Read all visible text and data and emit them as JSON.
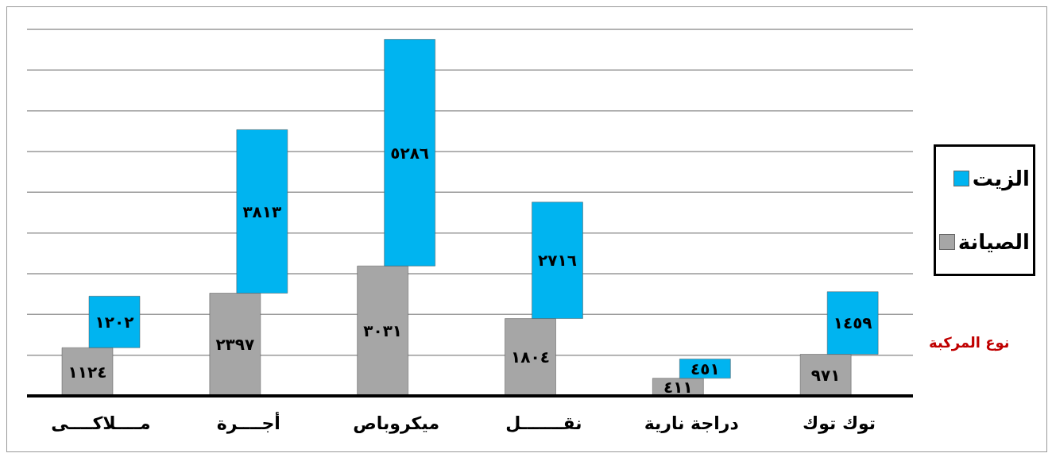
{
  "chart_data": {
    "type": "bar",
    "stacked": true,
    "xlabel": "نوع المركبة",
    "categories": [
      "مــــلاكــــى",
      "أجــــرة",
      "ميكروباص",
      "نقـــــــل",
      "دراجة نارية",
      "توك توك"
    ],
    "series": [
      {
        "name": "الصيانة",
        "color": "#a6a6a6",
        "values": [
          1124,
          2397,
          3031,
          1804,
          411,
          971
        ],
        "value_labels": [
          "١١٢٤",
          "٢٣٩٧",
          "٣٠٣١",
          "١٨٠٤",
          "٤١١",
          "٩٧١"
        ]
      },
      {
        "name": "الزيت",
        "color": "#00b4f0",
        "values": [
          1202,
          3813,
          5286,
          2716,
          451,
          1459
        ],
        "value_labels": [
          "١٢٠٢",
          "٣٨١٣",
          "٥٢٨٦",
          "٢٧١٦",
          "٤٥١",
          "١٤٥٩"
        ]
      }
    ],
    "tick_labels": "x",
    "grid": "y",
    "legend": "right"
  }
}
